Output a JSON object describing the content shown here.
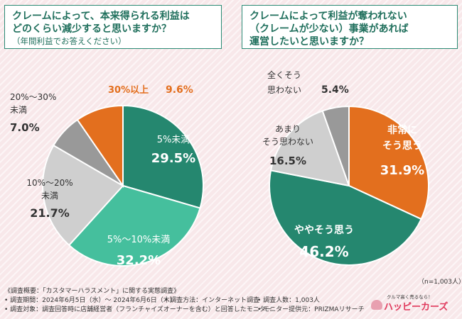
{
  "chart_data": [
    {
      "type": "pie",
      "title_lines": [
        "クレームによって、本来得られる利益は",
        "どのくらい減少すると思いますか？"
      ],
      "subtitle": "（年間利益でお答えください）",
      "start": "top, clockwise",
      "slices": [
        {
          "name": "5%未満",
          "value": 29.5,
          "color": "#25876f",
          "value_label": "29.5%"
        },
        {
          "name": "5%～10%未満",
          "value": 32.2,
          "color": "#45bf9d",
          "value_label": "32.2%"
        },
        {
          "name": "10%～20%未満",
          "value": 21.7,
          "color": "#cfcfcf",
          "value_label": "21.7%"
        },
        {
          "name": "20%～30%未満",
          "value": 7.0,
          "color": "#999999",
          "value_label": "7.0%"
        },
        {
          "name": "30%以上",
          "value": 9.6,
          "color": "#e36f1e",
          "value_label": "9.6%"
        }
      ]
    },
    {
      "type": "pie",
      "title_lines": [
        "クレームによって利益が奪われない",
        "（クレームが少ない）事業があれば",
        "運営したいと思いますか？"
      ],
      "start": "top, clockwise",
      "slices": [
        {
          "name": "非常にそう思う",
          "value": 31.9,
          "color": "#e36f1e",
          "value_label": "31.9%"
        },
        {
          "name": "ややそう思う",
          "value": 46.2,
          "color": "#25876f",
          "value_label": "46.2%"
        },
        {
          "name": "あまりそう思わない",
          "value": 16.5,
          "color": "#cfcfcf",
          "value_label": "16.5%"
        },
        {
          "name": "全くそう思わない",
          "value": 5.4,
          "color": "#999999",
          "value_label": "5.4%"
        }
      ],
      "sample_note": "（n=1,003人）"
    }
  ],
  "labels": {
    "left": {
      "s0_name": "5%未満",
      "s0_val": "29.5%",
      "s1_name": "5%～10%未満",
      "s1_val": "32.2%",
      "s2_name_1": "10%～20%",
      "s2_name_2": "未満",
      "s2_val": "21.7%",
      "s3_name_1": "20%～30%",
      "s3_name_2": "未満",
      "s3_val": "7.0%",
      "s4_name": "30%以上",
      "s4_val": "9.6%"
    },
    "right": {
      "s0_name_1": "非常に",
      "s0_name_2": "そう思う",
      "s0_val": "31.9%",
      "s1_name": "ややそう思う",
      "s1_val": "46.2%",
      "s2_name_1": "あまり",
      "s2_name_2": "そう思わない",
      "s2_val": "16.5%",
      "s3_name_1": "全くそう",
      "s3_name_2": "思わない",
      "s3_val": "5.4%"
    }
  },
  "footer": {
    "survey_overview": "《調査概要：「カスタマーハラスメント」に関する実態調査》",
    "period": "• 調査期間：2024年6月5日（水）～ 2024年6月6日（木）",
    "method": "• 調査方法：インターネット調査",
    "respondents": "• 調査人数：1,003人",
    "target": "• 調査対象：調査回答時に店舗経営者（フランチャイズオーナーを含む）と回答したモニター",
    "provider": "• モニター提供元：PRIZMAリサーチ"
  },
  "logo": {
    "tagline": "クルマ高く売るなら！",
    "name": "ハッピーカーズ",
    "icon": "car-icon"
  }
}
